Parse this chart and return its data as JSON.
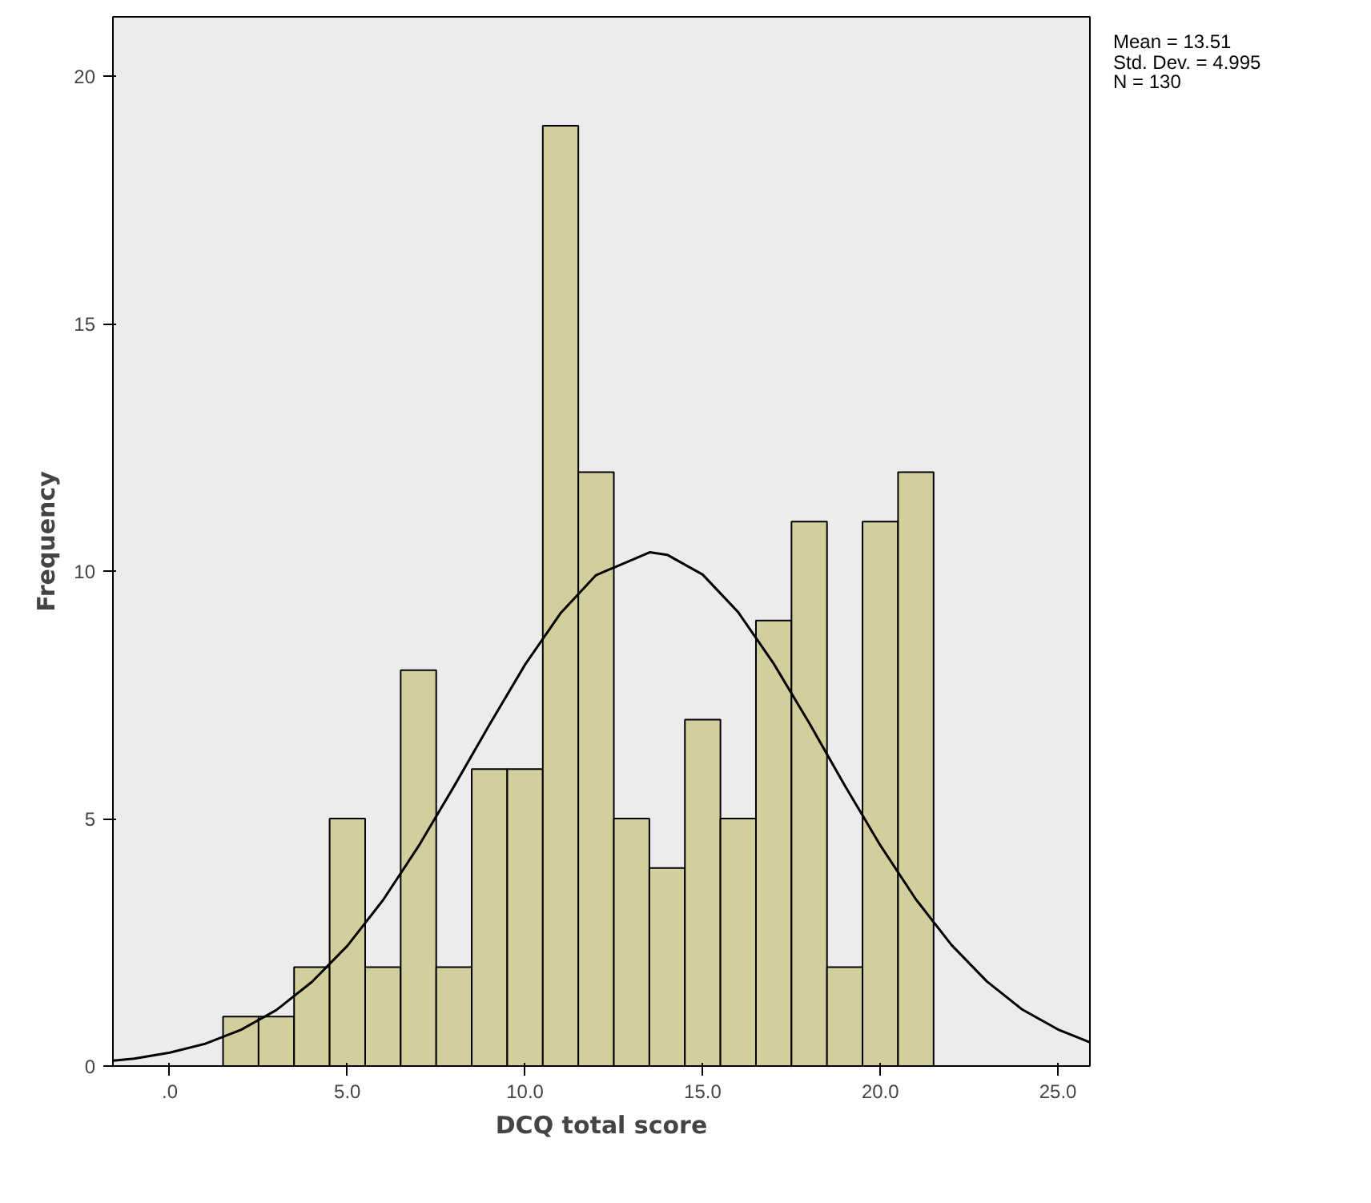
{
  "chart_data": {
    "type": "histogram",
    "xlabel": "DCQ total score",
    "ylabel": "Frequency",
    "annotations": [
      "Mean = 13.51",
      "Std. Dev. = 4.995",
      "N = 130"
    ],
    "series": [
      {
        "type": "histogram",
        "color": "#d3cf9c",
        "bins": [
          1.5,
          2.5,
          3.5,
          4.5,
          5.5,
          6.5,
          7.5,
          8.5,
          9.5,
          10.5,
          11.5,
          12.5,
          13.5,
          14.5,
          15.5,
          16.5,
          17.5,
          18.5,
          19.5,
          20.5,
          21.5
        ],
        "values": [
          1,
          1,
          2,
          5,
          2,
          8,
          2,
          6,
          6,
          19,
          12,
          5,
          4,
          7,
          5,
          9,
          11,
          2,
          11,
          12
        ]
      },
      {
        "type": "line",
        "color": "#000000",
        "x": [
          -1.6,
          -1,
          0,
          1,
          2,
          3,
          4,
          5,
          6,
          7,
          8,
          9,
          10,
          11,
          12,
          13.51,
          14,
          15,
          16,
          17,
          18,
          19,
          20,
          21,
          22,
          23,
          24,
          25,
          25.9
        ],
        "values": [
          0.11,
          0.15,
          0.27,
          0.45,
          0.73,
          1.13,
          1.7,
          2.43,
          3.35,
          4.44,
          5.65,
          6.9,
          8.11,
          9.15,
          9.92,
          10.38,
          10.33,
          9.93,
          9.17,
          8.13,
          6.93,
          5.67,
          4.46,
          3.37,
          2.45,
          1.71,
          1.14,
          0.74,
          0.48
        ]
      }
    ],
    "xlim": [
      -1.6,
      25.9
    ],
    "ylim": [
      0,
      21.2
    ],
    "xticks": [
      {
        "value": 0,
        "label": ".0"
      },
      {
        "value": 5,
        "label": "5.0"
      },
      {
        "value": 10,
        "label": "10.0"
      },
      {
        "value": 15,
        "label": "15.0"
      },
      {
        "value": 20,
        "label": "20.0"
      },
      {
        "value": 25,
        "label": "25.0"
      }
    ],
    "yticks": [
      0,
      5,
      10,
      15,
      20
    ],
    "grid": false
  }
}
